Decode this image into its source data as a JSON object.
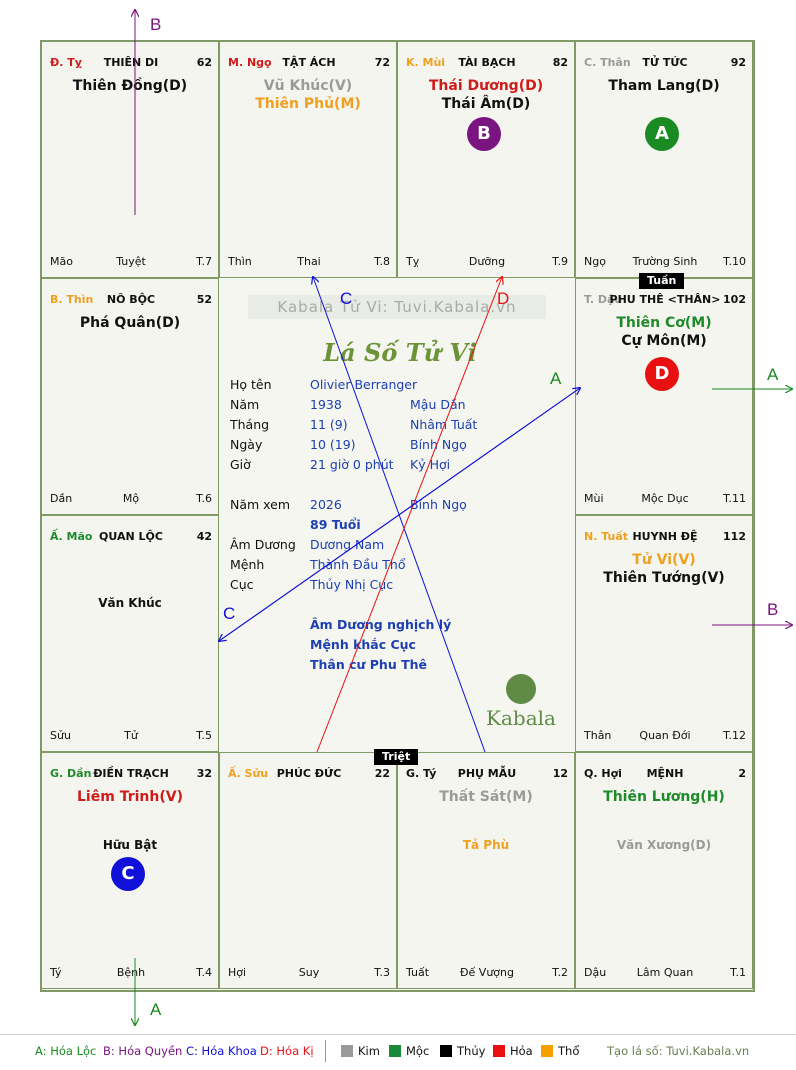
{
  "palaces": [
    {
      "id": "ty-top",
      "branch": "Đ. Tỵ",
      "branch_color": "#d01b1b",
      "palace": "THIÊN DI",
      "number": "62",
      "stars": [
        {
          "text": "Thiên Đồng(D)",
          "color": "#111"
        }
      ],
      "minor": "",
      "foot": [
        "Mão",
        "Tuyệt",
        "T.7"
      ]
    },
    {
      "id": "ngo",
      "branch": "M. Ngọ",
      "branch_color": "#d01b1b",
      "palace": "TẬT ÁCH",
      "number": "72",
      "stars": [
        {
          "text": "Vũ Khúc(V)",
          "color": "#9a9a9a"
        },
        {
          "text": "Thiên Phủ(M)",
          "color": "#f0a020"
        }
      ],
      "minor": "",
      "foot": [
        "Thìn",
        "Thai",
        "T.8"
      ]
    },
    {
      "id": "mui",
      "branch": "K. Mùi",
      "branch_color": "#f0a020",
      "palace": "TÀI BẠCH",
      "number": "82",
      "stars": [
        {
          "text": "Thái Dương(D)",
          "color": "#d01b1b"
        },
        {
          "text": "Thái Âm(D)",
          "color": "#111"
        }
      ],
      "minor": "",
      "foot": [
        "Tỵ",
        "Dưỡng",
        "T.9"
      ]
    },
    {
      "id": "than",
      "branch": "C. Thân",
      "branch_color": "#9a9a9a",
      "palace": "TỬ TỨC",
      "number": "92",
      "stars": [
        {
          "text": "Tham Lang(D)",
          "color": "#111"
        }
      ],
      "minor": "",
      "foot": [
        "Ngọ",
        "Trường Sinh",
        "T.10"
      ]
    },
    {
      "id": "thin",
      "branch": "B. Thìn",
      "branch_color": "#f0a020",
      "palace": "NÔ BỘC",
      "number": "52",
      "stars": [
        {
          "text": "Phá Quân(D)",
          "color": "#111"
        }
      ],
      "minor": "",
      "foot": [
        "Dần",
        "Mộ",
        "T.6"
      ]
    },
    {
      "id": "dau",
      "branch": "T. Dậu",
      "branch_color": "#9a9a9a",
      "palace": "PHU THÊ <THÂN>",
      "number": "102",
      "stars": [
        {
          "text": "Thiên Cơ(M)",
          "color": "#1e8a2a"
        },
        {
          "text": "Cự Môn(M)",
          "color": "#111"
        }
      ],
      "minor": "",
      "foot": [
        "Mùi",
        "Mộc Dục",
        "T.11"
      ]
    },
    {
      "id": "mao",
      "branch": "Ấ. Mão",
      "branch_color": "#1e8a2a",
      "palace": "QUAN LỘC",
      "number": "42",
      "stars": [],
      "minor": "Văn Khúc",
      "minor_color": "#111",
      "foot": [
        "Sửu",
        "Tử",
        "T.5"
      ]
    },
    {
      "id": "tuat",
      "branch": "N. Tuất",
      "branch_color": "#f0a020",
      "palace": "HUYNH ĐỆ",
      "number": "112",
      "stars": [
        {
          "text": "Tử Vi(V)",
          "color": "#f0a020"
        },
        {
          "text": "Thiên Tướng(V)",
          "color": "#111"
        }
      ],
      "minor": "",
      "foot": [
        "Thân",
        "Quan Đới",
        "T.12"
      ]
    },
    {
      "id": "dan",
      "branch": "G. Dần",
      "branch_color": "#1e8a2a",
      "palace": "ĐIỀN TRẠCH",
      "number": "32",
      "stars": [
        {
          "text": "Liêm Trinh(V)",
          "color": "#d01b1b"
        }
      ],
      "minor": "Hữu Bật",
      "minor_color": "#111",
      "foot": [
        "Tý",
        "Bệnh",
        "T.4"
      ]
    },
    {
      "id": "suu",
      "branch": "Ấ. Sửu",
      "branch_color": "#f0a020",
      "palace": "PHÚC ĐỨC",
      "number": "22",
      "stars": [],
      "minor": "",
      "foot": [
        "Hợi",
        "Suy",
        "T.3"
      ]
    },
    {
      "id": "ty-bottom",
      "branch": "G. Tý",
      "branch_color": "#111",
      "palace": "PHỤ MẪU",
      "number": "12",
      "stars": [
        {
          "text": "Thất Sát(M)",
          "color": "#9a9a9a"
        }
      ],
      "minor": "Tả Phù",
      "minor_color": "#f0a020",
      "foot": [
        "Tuất",
        "Đế Vượng",
        "T.2"
      ]
    },
    {
      "id": "hoi",
      "branch": "Q. Hợi",
      "branch_color": "#111",
      "palace": "MỆNH",
      "number": "2",
      "stars": [
        {
          "text": "Thiên Lương(H)",
          "color": "#1e8a2a"
        }
      ],
      "minor": "Văn Xương(D)",
      "minor_color": "#9a9a9a",
      "foot": [
        "Dậu",
        "Lâm Quan",
        "T.1"
      ]
    }
  ],
  "tags": {
    "tuan": "Tuần",
    "triet": "Triệt"
  },
  "badges": [
    {
      "letter": "B",
      "color": "#7a1480",
      "palace": "mui"
    },
    {
      "letter": "A",
      "color": "#1a8a22",
      "palace": "than"
    },
    {
      "letter": "D",
      "color": "#e81010",
      "palace": "dau"
    },
    {
      "letter": "C",
      "color": "#1010d8",
      "palace": "dan"
    }
  ],
  "center": {
    "watermark": "Kabala Tử Vi: Tuvi.Kabala.vn",
    "title": "Lá Số Tử Vi",
    "info": [
      {
        "label": "Họ tên",
        "value": "Olivier Berranger",
        "extra": ""
      },
      {
        "label": "Năm",
        "value": "1938",
        "extra": "Mậu Dần"
      },
      {
        "label": "Tháng",
        "value": "11  (9)",
        "extra": "Nhâm Tuất"
      },
      {
        "label": "Ngày",
        "value": "10  (19)",
        "extra": "Bính Ngọ"
      },
      {
        "label": "Giờ",
        "value": "21 giờ 0 phút",
        "extra": "Kỷ Hợi"
      }
    ],
    "year_view": {
      "label": "Năm xem",
      "value": "2026",
      "extra": "Bính Ngọ"
    },
    "age": "89 Tuổi",
    "details": [
      {
        "label": "Âm Dương",
        "value": "Dương Nam"
      },
      {
        "label": "Mệnh",
        "value": "Thành Đầu Thổ"
      },
      {
        "label": "Cục",
        "value": "Thủy Nhị Cục"
      }
    ],
    "notes": [
      "Âm Dương nghịch lý",
      "Mệnh khắc Cục",
      "Thân cư Phu Thê"
    ],
    "logo": "Kabala"
  },
  "arrow_labels": {
    "A": "A",
    "B": "B",
    "C": "C",
    "D": "D"
  },
  "legend": {
    "A": "A: Hóa Lộc",
    "B": "B: Hóa Quyền",
    "C": "C: Hóa Khoa",
    "D": "D: Hóa Kị",
    "elements": [
      {
        "name": "Kim",
        "color": "#9a9a9a"
      },
      {
        "name": "Mộc",
        "color": "#1a8a3a"
      },
      {
        "name": "Thủy",
        "color": "#000000"
      },
      {
        "name": "Hỏa",
        "color": "#e81010"
      },
      {
        "name": "Thổ",
        "color": "#f5a000"
      }
    ],
    "site": "Tạo lá số: Tuvi.Kabala.vn"
  }
}
